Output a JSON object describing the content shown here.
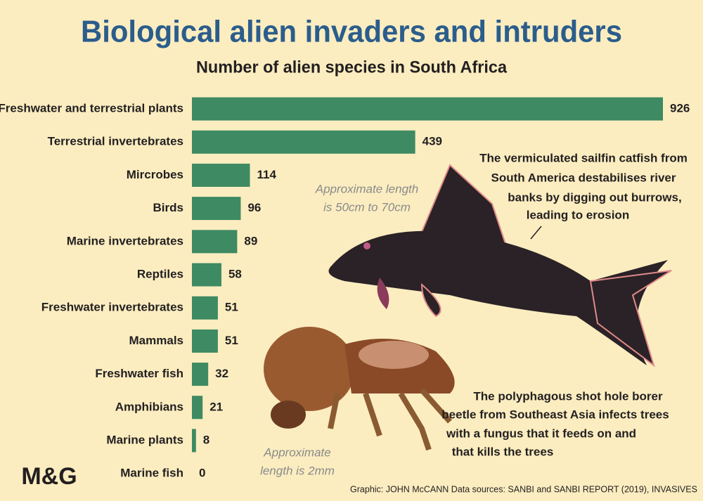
{
  "logo": "M&G",
  "chart_data": {
    "type": "bar",
    "orientation": "horizontal",
    "title": "Biological alien invaders and intruders",
    "subtitle": "Number of alien species in South Africa",
    "categories": [
      "Freshwater and terrestrial plants",
      "Terrestrial invertebrates",
      "Mircrobes",
      "Birds",
      "Marine invertebrates",
      "Reptiles",
      "Freshwater invertebrates",
      "Mammals",
      "Freshwater fish",
      "Amphibians",
      "Marine plants",
      "Marine fish"
    ],
    "values": [
      926,
      439,
      114,
      96,
      89,
      58,
      51,
      51,
      32,
      21,
      8,
      0
    ],
    "color": "#3e8a62",
    "annotations": [
      {
        "lines": [
          "The vermiculated sailfin catfish from",
          "South America destabilises river",
          "banks by digging out burrows,",
          "leading to erosion"
        ]
      },
      {
        "lines": [
          "Approximate length",
          "is 50cm to 70cm"
        ]
      },
      {
        "lines": [
          "The polyphagous shot hole borer",
          "beetle from Southeast Asia infects trees",
          "with a fungus that it feeds on and",
          "that kills the trees"
        ]
      },
      {
        "lines": [
          "Approximate",
          "length is 2mm"
        ]
      }
    ],
    "source": "Graphic: JOHN McCANN  Data sources: SANBI and SANBI REPORT (2019), INVASIVES"
  }
}
